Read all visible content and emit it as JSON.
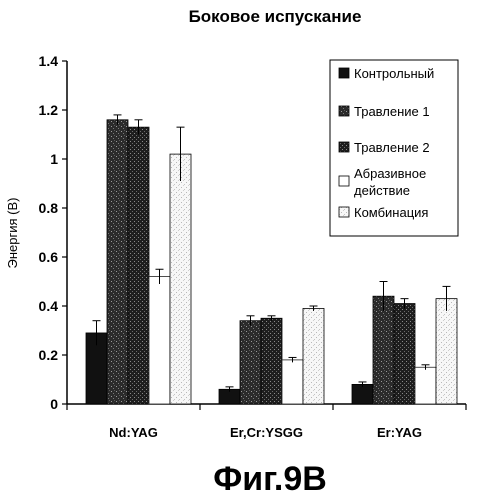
{
  "chart_data": {
    "type": "bar",
    "title": "Боковое испускание",
    "ylabel": "Энергия (В)",
    "xlabel": "",
    "ylim": [
      0,
      1.4
    ],
    "yticks": [
      "0",
      "0.2",
      "0.4",
      "0.6",
      "0.8",
      "1",
      "1.2",
      "1.4"
    ],
    "categories": [
      "Nd:YAG",
      "Er,Cr:YSGG",
      "Er:YAG"
    ],
    "grid": false,
    "legend_position": "top-right",
    "series": [
      {
        "name": "Контрольный",
        "values": [
          0.29,
          0.06,
          0.08
        ],
        "errors": [
          0.05,
          0.01,
          0.01
        ],
        "fill": "#111111",
        "pattern": "solid"
      },
      {
        "name": "Травление 1",
        "values": [
          1.16,
          0.34,
          0.44
        ],
        "errors": [
          0.02,
          0.02,
          0.06
        ],
        "fill": "#3a3a3a",
        "pattern": "speckle-dark"
      },
      {
        "name": "Травление 2",
        "values": [
          1.13,
          0.35,
          0.41
        ],
        "errors": [
          0.03,
          0.01,
          0.02
        ],
        "fill": "#2a2a2a",
        "pattern": "speckle-dark2"
      },
      {
        "name": "Абразивное действие",
        "legend_lines": [
          "Абразивное",
          "действие"
        ],
        "values": [
          0.52,
          0.18,
          0.15
        ],
        "errors": [
          0.03,
          0.01,
          0.01
        ],
        "fill": "#ffffff",
        "pattern": "white"
      },
      {
        "name": "Комбинация",
        "values": [
          1.02,
          0.39,
          0.43
        ],
        "errors": [
          0.11,
          0.01,
          0.05
        ],
        "fill": "#f4f4f4",
        "pattern": "speckle-light"
      }
    ]
  },
  "figure_label": "Фиг.9В"
}
